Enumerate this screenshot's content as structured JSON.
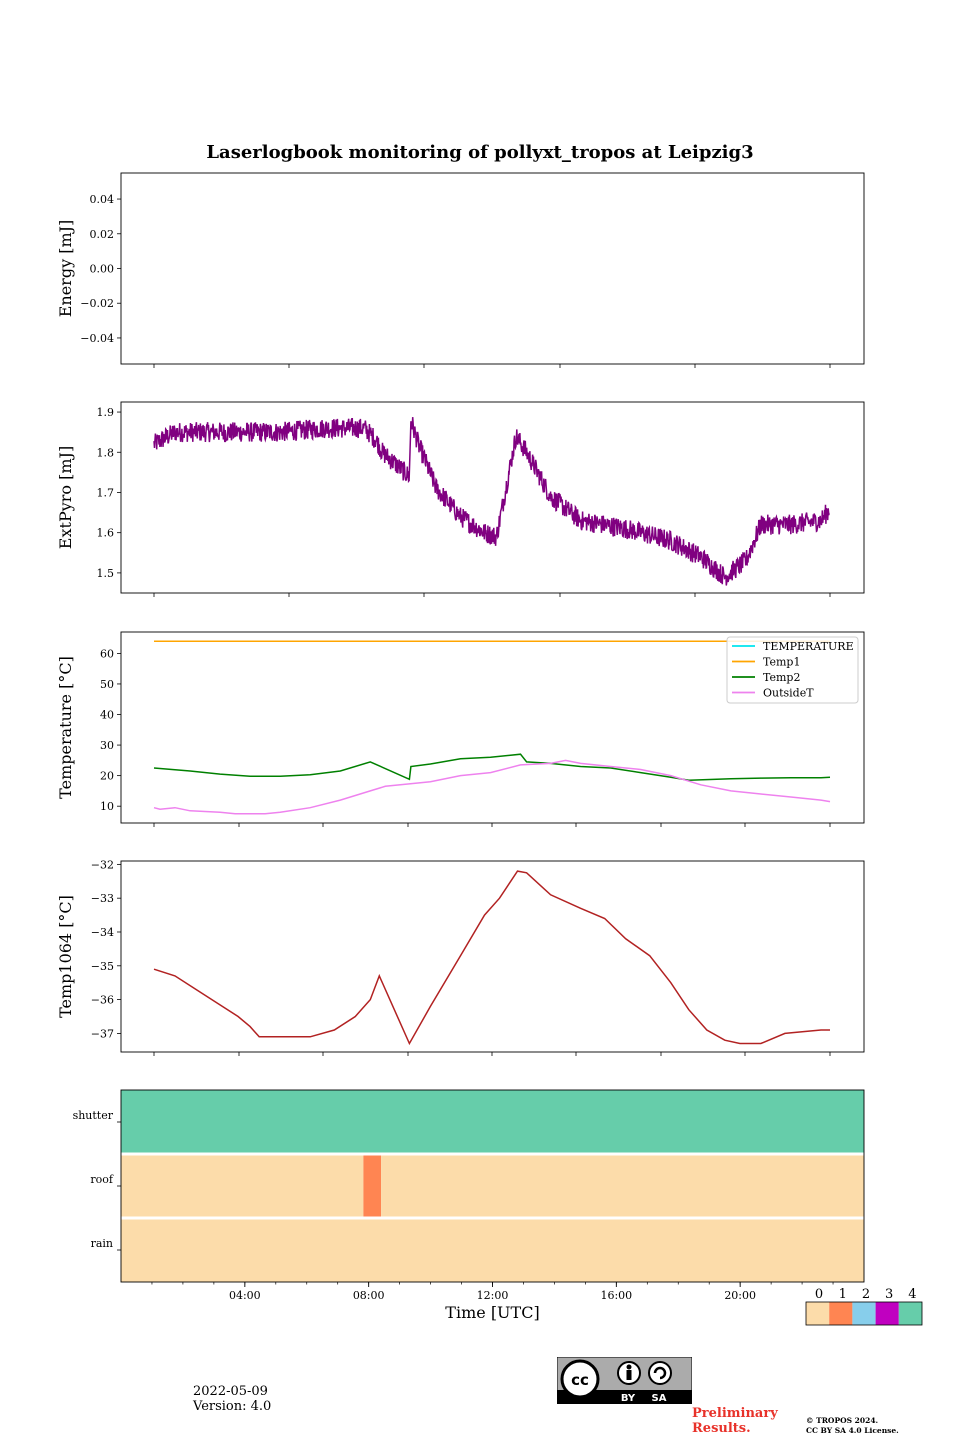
{
  "title": "Laserlogbook monitoring of pollyxt_tropos at Leipzig3",
  "footer": {
    "date": "2022-05-09",
    "version": "Version: 4.0",
    "preliminary_line1": "Preliminary",
    "preliminary_line2": "Results.",
    "copyright_line1": "© TROPOS 2024.",
    "copyright_line2": "CC BY SA 4.0 License.",
    "license_badge": [
      "BY",
      "SA"
    ]
  },
  "colors": {
    "extpyro": "#800080",
    "temperature": "#00e5ee",
    "temp1": "#ffa500",
    "temp2": "#008000",
    "outsideT": "#ee82ee",
    "temp1064": "#b22222",
    "flag0": "#fcdcaa",
    "flag1": "#ff8552",
    "flag2": "#87ceeb",
    "flag3": "#c000c0",
    "flag4": "#66cdaa"
  },
  "chart_data": [
    {
      "type": "line",
      "name": "energy",
      "ylabel": "Energy [mJ]",
      "xlim": [
        0,
        24
      ],
      "ylim": [
        -0.055,
        0.055
      ],
      "yticks": [
        0.04,
        0.02,
        0.0,
        -0.02,
        -0.04
      ],
      "ytick_labels": [
        "0.04",
        "0.02",
        "0.00",
        "−0.02",
        "−0.04"
      ],
      "series": []
    },
    {
      "type": "line",
      "name": "extpyro",
      "ylabel": "ExtPyro [mJ]",
      "xlim": [
        0,
        24
      ],
      "ylim": [
        1.45,
        1.925
      ],
      "yticks": [
        1.9,
        1.8,
        1.7,
        1.6,
        1.5
      ],
      "ytick_labels": [
        "1.9",
        "1.8",
        "1.7",
        "1.6",
        "1.5"
      ],
      "series": [
        {
          "name": "ExtPyro",
          "color": "extpyro",
          "noise": 0.025,
          "points": [
            [
              0.8,
              1.82
            ],
            [
              1.5,
              1.85
            ],
            [
              3,
              1.85
            ],
            [
              5,
              1.85
            ],
            [
              6.5,
              1.86
            ],
            [
              7.8,
              1.86
            ],
            [
              8.2,
              1.83
            ],
            [
              8.4,
              1.8
            ],
            [
              9.3,
              1.74
            ],
            [
              9.35,
              1.88
            ],
            [
              9.6,
              1.82
            ],
            [
              10.2,
              1.71
            ],
            [
              11,
              1.64
            ],
            [
              11.8,
              1.6
            ],
            [
              12.2,
              1.59
            ],
            [
              12.85,
              1.84
            ],
            [
              13.2,
              1.8
            ],
            [
              14,
              1.69
            ],
            [
              15,
              1.63
            ],
            [
              16.5,
              1.61
            ],
            [
              18,
              1.58
            ],
            [
              19,
              1.54
            ],
            [
              19.8,
              1.49
            ],
            [
              20.5,
              1.53
            ],
            [
              21,
              1.62
            ],
            [
              22,
              1.62
            ],
            [
              23,
              1.63
            ],
            [
              23.3,
              1.66
            ]
          ]
        }
      ]
    },
    {
      "type": "line",
      "name": "temperature",
      "ylabel": "Temperature [°C]",
      "xlim": [
        0,
        24
      ],
      "ylim": [
        4.5,
        67
      ],
      "yticks": [
        60,
        50,
        40,
        30,
        20,
        10
      ],
      "ytick_labels": [
        "60",
        "50",
        "40",
        "30",
        "20",
        "10"
      ],
      "legend": [
        "TEMPERATURE",
        "Temp1",
        "Temp2",
        "OutsideT"
      ],
      "legend_position": "top-right",
      "series": [
        {
          "name": "TEMPERATURE",
          "color": "temperature",
          "points": []
        },
        {
          "name": "Temp1",
          "color": "temp1",
          "points": [
            [
              0.8,
              64
            ],
            [
              23.3,
              64
            ]
          ]
        },
        {
          "name": "Temp2",
          "color": "temp2",
          "points": [
            [
              0.8,
              22.5
            ],
            [
              2,
              21.5
            ],
            [
              3,
              20.5
            ],
            [
              4,
              19.8
            ],
            [
              5,
              19.8
            ],
            [
              6,
              20.3
            ],
            [
              7,
              21.5
            ],
            [
              8,
              24.5
            ],
            [
              9.3,
              18.8
            ],
            [
              9.35,
              23
            ],
            [
              10,
              23.8
            ],
            [
              11,
              25.5
            ],
            [
              12,
              26
            ],
            [
              13,
              27
            ],
            [
              13.2,
              24.5
            ],
            [
              14,
              24
            ],
            [
              15,
              23
            ],
            [
              16,
              22.5
            ],
            [
              17,
              21
            ],
            [
              18,
              19.5
            ],
            [
              18.6,
              18.5
            ],
            [
              20,
              19
            ],
            [
              21,
              19.2
            ],
            [
              22,
              19.3
            ],
            [
              23,
              19.3
            ],
            [
              23.3,
              19.5
            ]
          ]
        },
        {
          "name": "OutsideT",
          "color": "outsideT",
          "points": [
            [
              0.8,
              9.5
            ],
            [
              1,
              9
            ],
            [
              1.5,
              9.5
            ],
            [
              2,
              8.5
            ],
            [
              3,
              8
            ],
            [
              3.5,
              7.5
            ],
            [
              4.5,
              7.5
            ],
            [
              5,
              8
            ],
            [
              6,
              9.5
            ],
            [
              7,
              12
            ],
            [
              8,
              15
            ],
            [
              8.5,
              16.5
            ],
            [
              9,
              17
            ],
            [
              10,
              18
            ],
            [
              11,
              20
            ],
            [
              12,
              21
            ],
            [
              13,
              23.5
            ],
            [
              14,
              24
            ],
            [
              14.5,
              25
            ],
            [
              15,
              24
            ],
            [
              16,
              23
            ],
            [
              17,
              22
            ],
            [
              18,
              20
            ],
            [
              19,
              17
            ],
            [
              20,
              15
            ],
            [
              21,
              14
            ],
            [
              22,
              13
            ],
            [
              23,
              12
            ],
            [
              23.3,
              11.5
            ]
          ]
        }
      ]
    },
    {
      "type": "line",
      "name": "temp1064",
      "ylabel": "Temp1064 [°C]",
      "xlim": [
        0,
        24
      ],
      "ylim": [
        -37.55,
        -31.9
      ],
      "yticks": [
        -32,
        -33,
        -34,
        -35,
        -36,
        -37
      ],
      "ytick_labels": [
        "−32",
        "−33",
        "−34",
        "−35",
        "−36",
        "−37"
      ],
      "series": [
        {
          "name": "Temp1064",
          "color": "temp1064",
          "points": [
            [
              0.8,
              -35.1
            ],
            [
              1.5,
              -35.3
            ],
            [
              2.2,
              -35.7
            ],
            [
              2.9,
              -36.1
            ],
            [
              3.6,
              -36.5
            ],
            [
              4.0,
              -36.8
            ],
            [
              4.3,
              -37.1
            ],
            [
              6,
              -37.1
            ],
            [
              6.8,
              -36.9
            ],
            [
              7.5,
              -36.5
            ],
            [
              8.0,
              -36.0
            ],
            [
              8.3,
              -35.3
            ],
            [
              9.3,
              -37.3
            ],
            [
              10,
              -36.2
            ],
            [
              11,
              -34.7
            ],
            [
              11.8,
              -33.5
            ],
            [
              12.3,
              -33.0
            ],
            [
              12.9,
              -32.2
            ],
            [
              13.2,
              -32.25
            ],
            [
              14,
              -32.9
            ],
            [
              15,
              -33.3
            ],
            [
              15.8,
              -33.6
            ],
            [
              16.5,
              -34.2
            ],
            [
              17.3,
              -34.7
            ],
            [
              18,
              -35.5
            ],
            [
              18.6,
              -36.3
            ],
            [
              19.2,
              -36.9
            ],
            [
              19.8,
              -37.2
            ],
            [
              20.3,
              -37.3
            ],
            [
              21.0,
              -37.3
            ],
            [
              21.8,
              -37.0
            ],
            [
              23,
              -36.9
            ],
            [
              23.3,
              -36.9
            ]
          ]
        }
      ]
    },
    {
      "type": "heatmap",
      "name": "flags",
      "rows": [
        "shutter",
        "roof",
        "rain"
      ],
      "segments": {
        "shutter": [
          {
            "start": 0,
            "end": 24,
            "value": 4
          }
        ],
        "roof": [
          {
            "start": 0,
            "end": 7.83,
            "value": 0
          },
          {
            "start": 7.83,
            "end": 8.4,
            "value": 1
          },
          {
            "start": 8.4,
            "end": 24,
            "value": 0
          }
        ],
        "rain": [
          {
            "start": 0,
            "end": 24,
            "value": 0
          }
        ]
      },
      "xlabel": "Time [UTC]",
      "xlim": [
        0,
        24
      ],
      "xticks": [
        4,
        8,
        12,
        16,
        20
      ],
      "xtick_labels": [
        "04:00",
        "08:00",
        "12:00",
        "16:00",
        "20:00"
      ],
      "colorbar": {
        "values": [
          0,
          1,
          2,
          3,
          4
        ],
        "labels": [
          "0",
          "1",
          "2",
          "3",
          "4"
        ],
        "colors": [
          "flag0",
          "flag1",
          "flag2",
          "flag3",
          "flag4"
        ]
      }
    }
  ]
}
